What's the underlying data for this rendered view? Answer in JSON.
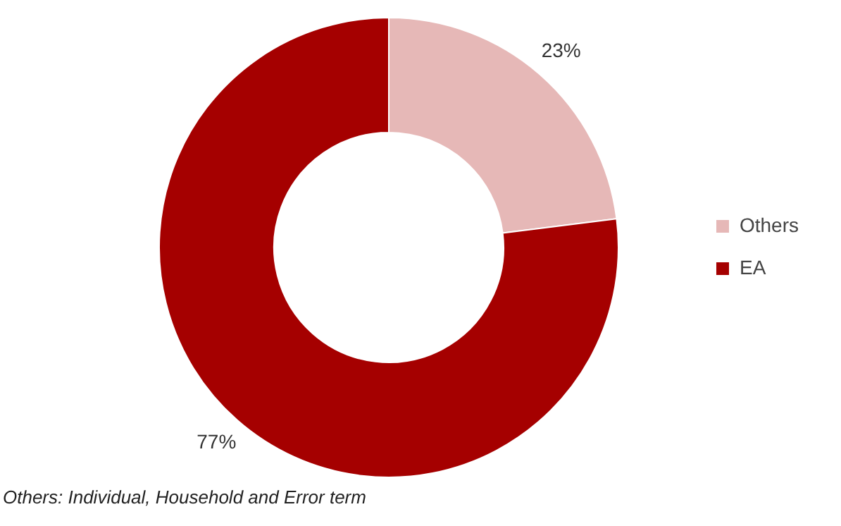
{
  "chart_data": {
    "type": "donut",
    "categories": [
      "Others",
      "EA"
    ],
    "values": [
      23,
      77
    ],
    "colors": [
      "#e6b8b7",
      "#a50000"
    ],
    "value_labels": [
      "23%",
      "77%"
    ],
    "legend": "right",
    "annotations": [
      "Others: Individual, Household and Error term"
    ]
  }
}
